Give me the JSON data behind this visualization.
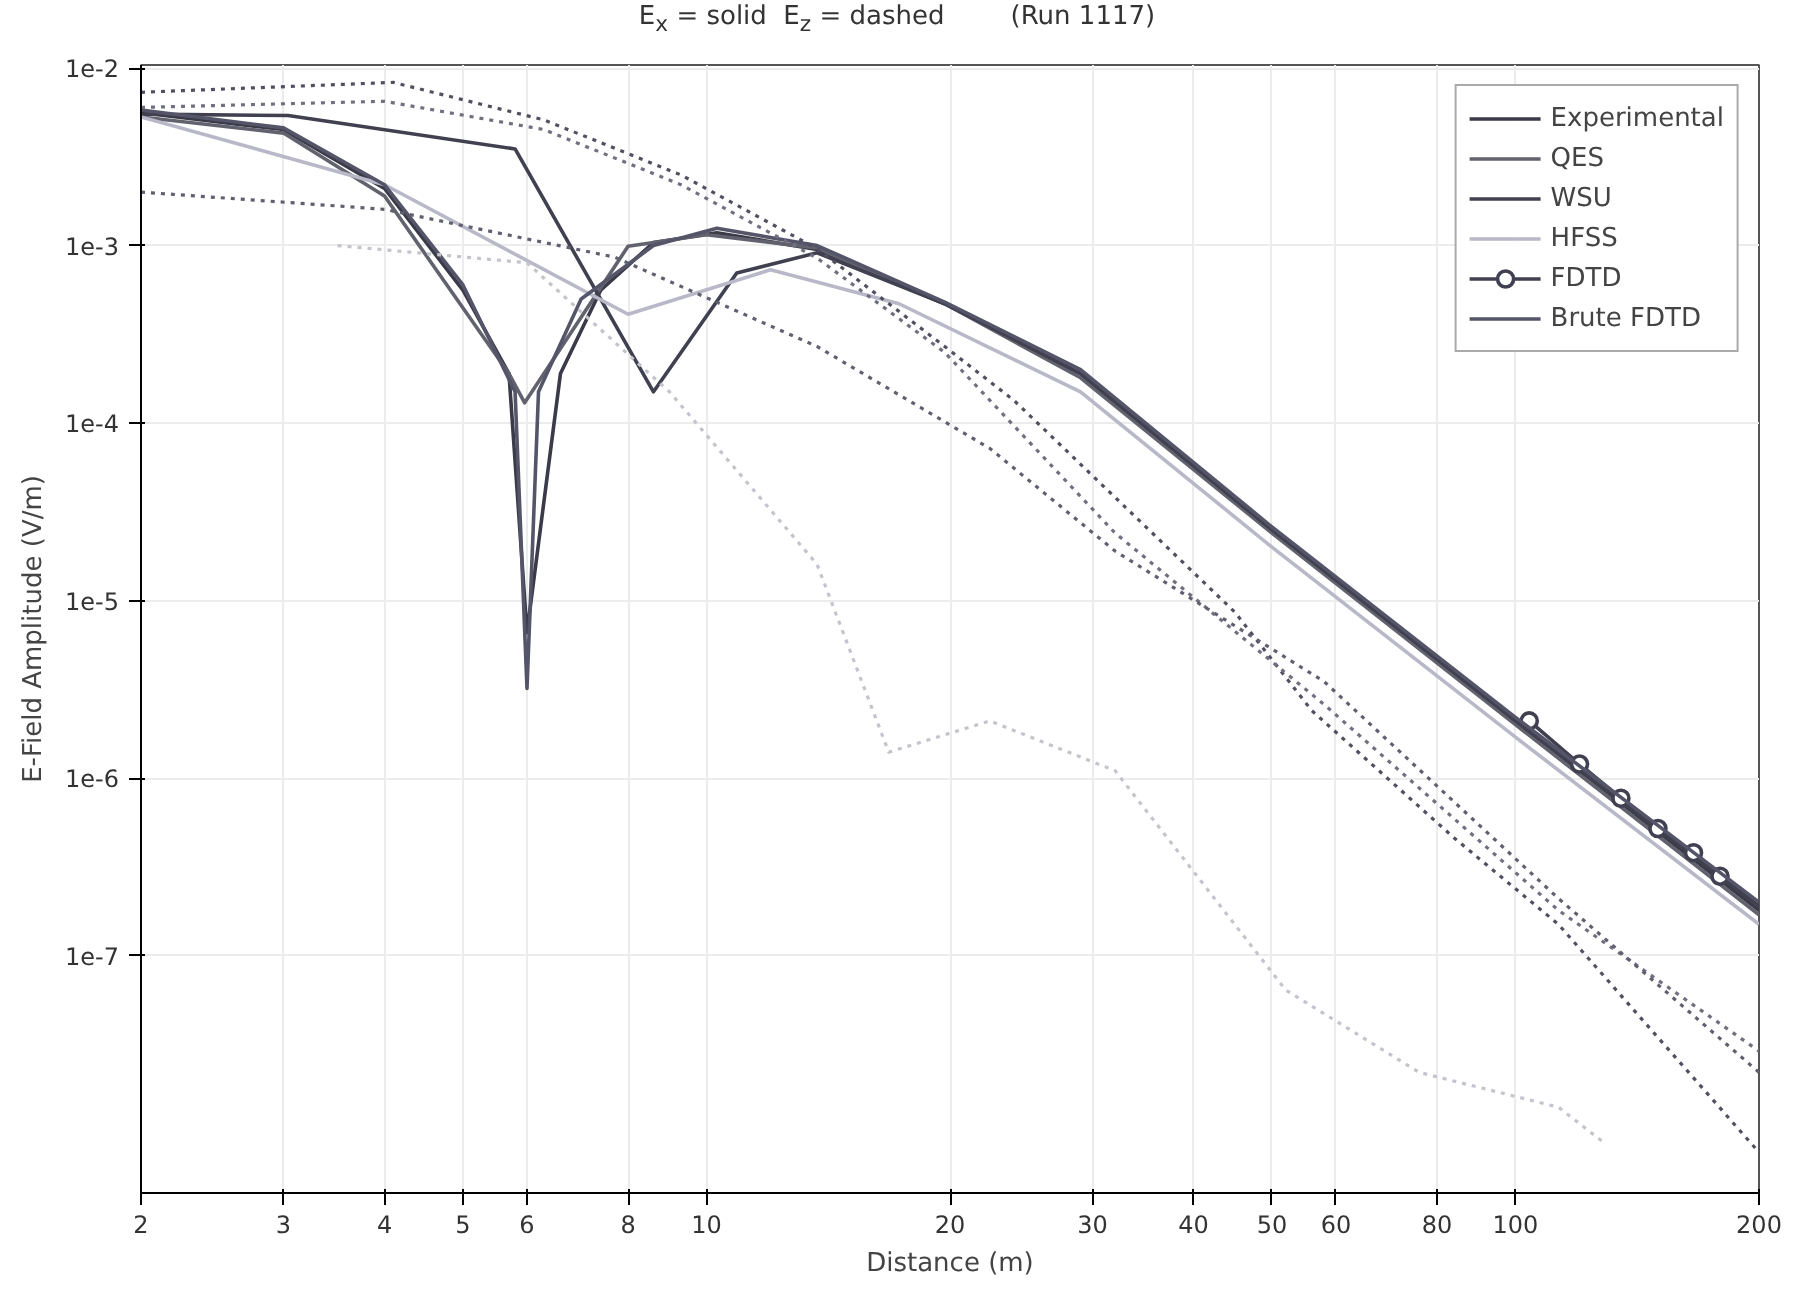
{
  "chart_data": {
    "type": "line",
    "title": "E$_{x}$ = solid   E$_{z}$ = dashed        (Run 1117)",
    "xlabel": "Distance (m)",
    "ylabel": "E-Field Amplitude (V/m)",
    "log": "xy",
    "grid": true,
    "legend": "top right",
    "xlim": [
      2,
      200
    ],
    "xticks": [
      2,
      3,
      4,
      5,
      6,
      8,
      10,
      20,
      30,
      40,
      50,
      60,
      80,
      100,
      200
    ],
    "ylim": [
      4.6e-09,
      0.0104
    ],
    "yticks": [
      {
        "value": 0.01,
        "label": "1e-2"
      },
      {
        "value": 0.001,
        "label": "1e-3"
      },
      {
        "value": 0.0001,
        "label": "1e-4"
      },
      {
        "value": 1e-05,
        "label": "1e-5"
      },
      {
        "value": 1e-06,
        "label": "1e-6"
      },
      {
        "value": 1e-07,
        "label": "1e-7"
      }
    ],
    "series": [
      {
        "name": "Experimental",
        "color": "#3a3a48",
        "line_style": "solid",
        "x": [
          2,
          3,
          4,
          5,
          5.7,
          6,
          6.6,
          7.4,
          8.6,
          10.3,
          13.7,
          19.7,
          29,
          50,
          100,
          200
        ],
        "values": [
          0.0056,
          0.0045,
          0.0021,
          0.00056,
          0.00019,
          6.6e-06,
          0.00019,
          0.00056,
          0.00104,
          0.00118,
          0.00095,
          0.00047,
          0.00019,
          2.5e-05,
          2.1e-06,
          1.8e-07
        ]
      },
      {
        "name": "QES",
        "color": "#62626f",
        "line_style": "solid",
        "x": [
          2,
          3,
          4,
          5.7,
          5.96,
          8,
          10,
          13.7,
          19.7,
          29,
          50,
          100,
          200
        ],
        "values": [
          0.0053,
          0.0043,
          0.0019,
          0.00019,
          0.00013,
          0.00099,
          0.00115,
          0.00097,
          0.00047,
          0.00018,
          2.4e-05,
          2e-06,
          1.7e-07
        ]
      },
      {
        "name": "WSU",
        "color": "#404050",
        "line_style": "solid",
        "x": [
          2,
          3.04,
          5.8,
          8.6,
          10.9,
          13.7,
          19.7,
          29,
          50,
          100,
          200
        ],
        "values": [
          0.0055,
          0.0054,
          0.0035,
          0.00015,
          0.0007,
          0.00091,
          0.00047,
          0.00019,
          2.5e-05,
          2.1e-06,
          1.9e-07
        ]
      },
      {
        "name": "HFSS",
        "color": "#b8b8c8",
        "line_style": "solid",
        "x": [
          2,
          4,
          8,
          12,
          17.3,
          29,
          50,
          100,
          200
        ],
        "values": [
          0.0053,
          0.0022,
          0.00041,
          0.00073,
          0.00047,
          0.00015,
          2e-05,
          1.7e-06,
          1.5e-07
        ]
      },
      {
        "name": "FDTD",
        "color": "#404050",
        "line_style": "solid",
        "marker": "circle",
        "x": [
          104,
          120,
          135,
          150,
          166,
          179
        ],
        "values": [
          2.1e-06,
          1.2e-06,
          7.7e-07,
          5.2e-07,
          3.8e-07,
          2.8e-07
        ]
      },
      {
        "name": "Brute FDTD",
        "color": "#55556a",
        "line_style": "solid",
        "x": [
          2,
          3,
          4,
          5,
          5.8,
          6,
          6.2,
          7,
          8.6,
          10.3,
          13.7,
          19.7,
          29,
          50,
          100,
          200
        ],
        "values": [
          0.0058,
          0.0046,
          0.0022,
          0.0006,
          0.00015,
          3.2e-06,
          0.00015,
          0.0005,
          0.001,
          0.00125,
          0.001,
          0.00048,
          0.0002,
          2.6e-05,
          2.2e-06,
          2e-07
        ]
      },
      {
        "color": "#505060",
        "line_style": "dotted",
        "x": [
          2,
          4.1,
          6.3,
          9.3,
          13.7,
          19.7,
          24,
          45,
          56,
          84,
          113,
          200
        ],
        "values": [
          0.0073,
          0.0083,
          0.0051,
          0.0025,
          0.00096,
          0.00027,
          0.000134,
          8.6e-06,
          2.4e-06,
          4.6e-07,
          1.5e-07,
          7.8e-09
        ]
      },
      {
        "color": "#707080",
        "line_style": "dotted",
        "x": [
          2,
          4,
          6.3,
          9.3,
          13.7,
          19.7,
          32,
          58,
          113,
          200
        ],
        "values": [
          0.006,
          0.0065,
          0.0045,
          0.0022,
          0.00085,
          0.00025,
          2.4e-05,
          2.6e-06,
          1.8e-07,
          2.9e-08
        ]
      },
      {
        "color": "#606070",
        "line_style": "dotted",
        "x": [
          2,
          4,
          7.7,
          13.7,
          22.4,
          32,
          58,
          113,
          200
        ],
        "values": [
          0.002,
          0.0016,
          0.00086,
          0.00027,
          7.2e-05,
          1.9e-05,
          3.5e-06,
          2.1e-07,
          2.2e-08
        ]
      },
      {
        "color": "#c4c4cc",
        "line_style": "dotted",
        "x": [
          3.5,
          6,
          9,
          13.7,
          16.8,
          22.4,
          32,
          52,
          76,
          113,
          128
        ],
        "values": [
          0.001,
          0.0008,
          0.00015,
          1.6e-05,
          1.4e-06,
          2.1e-06,
          1.1e-06,
          6.4e-08,
          2.2e-08,
          1.4e-08,
          9e-09
        ]
      }
    ]
  }
}
